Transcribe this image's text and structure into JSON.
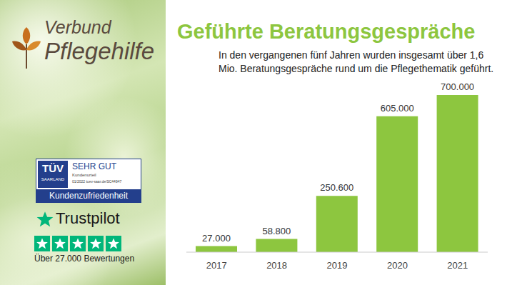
{
  "chart_data": {
    "type": "bar",
    "title": "Geführte Beratungsgespräche",
    "subtitle": "In den vergangenen fünf Jahren wurden insgesamt über 1,6 Mio. Beratungsgespräche rund um die Pflegethematik geführt.",
    "categories": [
      "2017",
      "2018",
      "2019",
      "2020",
      "2021"
    ],
    "values": [
      27000,
      58800,
      250600,
      605000,
      700000
    ],
    "value_labels": [
      "27.000",
      "58.800",
      "250.600",
      "605.000",
      "700.000"
    ],
    "color": "#8dc63f",
    "ylim": [
      0,
      700000
    ],
    "data_labels": true,
    "tick_labels": "x",
    "grid": false
  },
  "branding": {
    "logo": {
      "line1": "Verbund",
      "line2": "Pflegehilfe"
    },
    "tuev": {
      "brand": "TÜV",
      "region": "SAARLAND",
      "rating": "SEHR GUT",
      "label": "Kundenurteil",
      "date": "01/2022",
      "url": "tuev-saar.de/SC44947",
      "footer": "Kundenzufriedenheit"
    },
    "trustpilot": {
      "name": "Trustpilot",
      "stars": 5,
      "reviews": "Über 27.000 Bewertungen"
    }
  }
}
